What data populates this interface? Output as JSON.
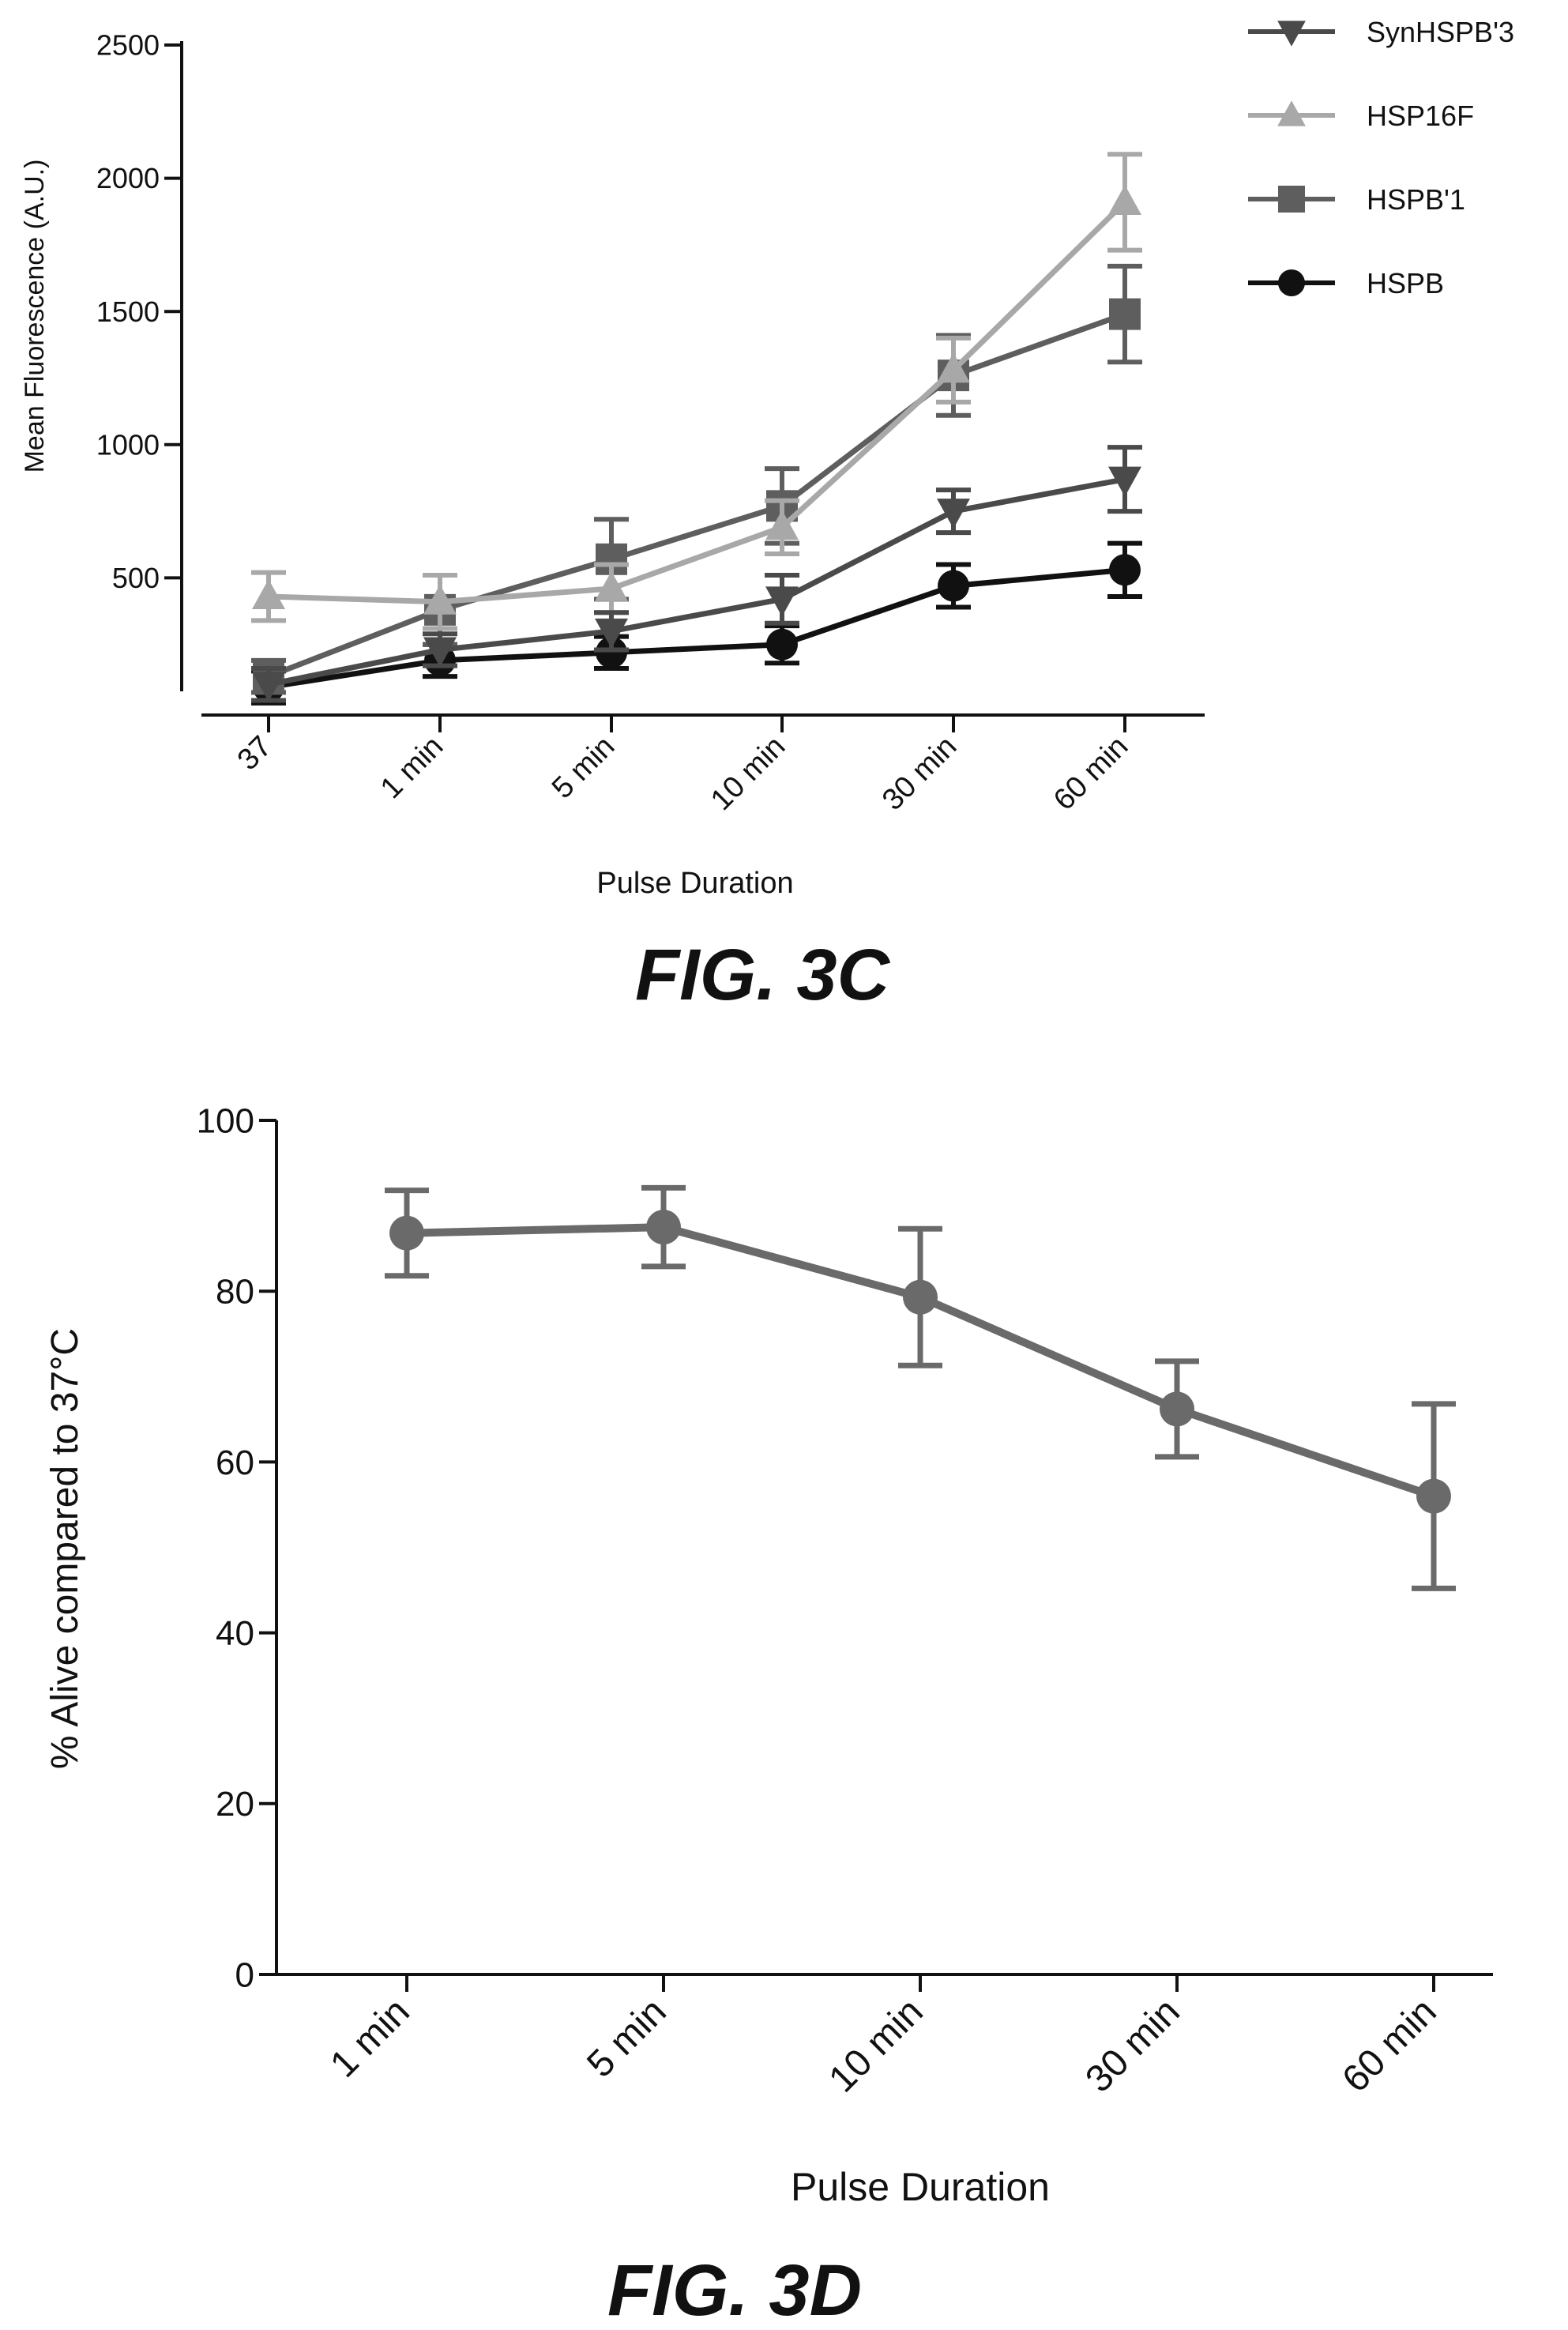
{
  "chart_data": [
    {
      "type": "line",
      "caption": "FIG. 3C",
      "title": "",
      "xlabel": "Pulse Duration",
      "ylabel": "Mean Fluorescence (A.U.)",
      "categories": [
        "37",
        "1 min",
        "5 min",
        "10 min",
        "30 min",
        "60 min"
      ],
      "yticks": [
        500,
        1000,
        1500,
        2000,
        2500
      ],
      "ylim": [
        0,
        2500
      ],
      "grid": false,
      "legend_position": "top-right",
      "series": [
        {
          "name": "SynHSPB'3",
          "marker": "triangle-down",
          "color": "#4a4a4a",
          "values": [
            100,
            230,
            300,
            420,
            750,
            870
          ],
          "errors": [
            60,
            60,
            70,
            90,
            80,
            120
          ]
        },
        {
          "name": "HSP16F",
          "marker": "triangle-up",
          "color": "#a8a8a8",
          "values": [
            430,
            410,
            460,
            690,
            1280,
            1910
          ],
          "errors": [
            90,
            100,
            90,
            100,
            120,
            180
          ]
        },
        {
          "name": "HSPB'1",
          "marker": "square",
          "color": "#5e5e5e",
          "values": [
            130,
            380,
            570,
            770,
            1260,
            1490
          ],
          "errors": [
            60,
            130,
            150,
            140,
            150,
            180
          ]
        },
        {
          "name": "HSPB",
          "marker": "circle",
          "color": "#111111",
          "values": [
            90,
            190,
            220,
            250,
            470,
            530
          ],
          "errors": [
            60,
            60,
            60,
            70,
            80,
            100
          ]
        }
      ]
    },
    {
      "type": "line",
      "caption": "FIG. 3D",
      "title": "",
      "xlabel": "Pulse Duration",
      "ylabel": "% Alive compared to 37°C",
      "categories": [
        "1 min",
        "5 min",
        "10 min",
        "30 min",
        "60 min"
      ],
      "yticks": [
        0,
        20,
        40,
        60,
        80,
        100
      ],
      "ylim": [
        0,
        100
      ],
      "grid": false,
      "series": [
        {
          "name": "",
          "marker": "circle",
          "color": "#6a6a6a",
          "values": [
            86.8,
            87.5,
            79.3,
            66.2,
            56.0
          ],
          "errors": [
            5.0,
            4.6,
            8.0,
            5.6,
            10.8
          ]
        }
      ]
    }
  ]
}
